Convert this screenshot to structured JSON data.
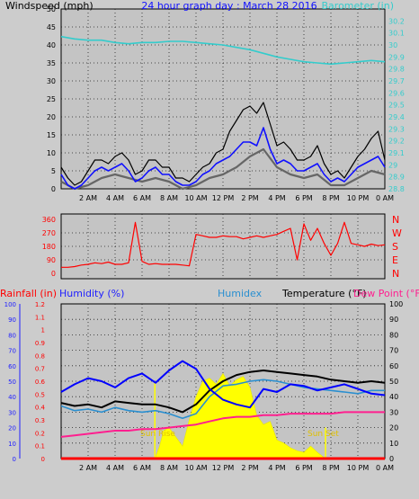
{
  "colors": {
    "background": "#cccccc",
    "plot_bg": "#c4c4c4",
    "wind_gust": "#000000",
    "wind_avg": "#1010ff",
    "wind_10min": "#666666",
    "baro": "#33cccc",
    "dir": "#ff0000",
    "temp": "#000000",
    "dew": "#ff1f8f",
    "humidity": "#0000ff",
    "humidex": "#2a8fd0",
    "solar": "#ffff00",
    "rain": "#ff0000",
    "sunlabel": "#e0c000"
  },
  "chart_data": [
    {
      "type": "line",
      "title": "24 hour graph day : March 28 2016",
      "ylabel": "Windspeed (mph)",
      "y2label": "Barometer (in)",
      "ylim": [
        0,
        50
      ],
      "y2lim": [
        28.8,
        30.3
      ],
      "yticks": [
        "0",
        "5",
        "10",
        "15",
        "20",
        "25",
        "30",
        "35",
        "40",
        "45",
        "50"
      ],
      "y2ticks": [
        "28.8",
        "28.9",
        "29",
        "29.1",
        "29.2",
        "29.3",
        "29.4",
        "29.5",
        "29.6",
        "29.7",
        "29.8",
        "29.9",
        "30",
        "30.1",
        "30.2"
      ],
      "xlim": [
        0,
        24
      ],
      "xticks": [
        "2 AM",
        "4 AM",
        "6 AM",
        "8 AM",
        "10 AM",
        "12 PM",
        "2 PM",
        "4 PM",
        "6 PM",
        "8 PM",
        "10 PM",
        "0 AM"
      ],
      "grid": true,
      "series": [
        {
          "key": "gust",
          "x": [
            0,
            0.5,
            1,
            1.5,
            2,
            2.5,
            3,
            3.5,
            4,
            4.5,
            5,
            5.5,
            6,
            6.5,
            7,
            7.5,
            8,
            8.5,
            9,
            9.5,
            10,
            10.5,
            11,
            11.5,
            12,
            12.5,
            13,
            13.5,
            14,
            14.5,
            15,
            15.5,
            16,
            16.5,
            17,
            17.5,
            18,
            18.5,
            19,
            19.5,
            20,
            20.5,
            21,
            21.5,
            22,
            22.5,
            23,
            23.5,
            24
          ],
          "y": [
            6,
            3,
            1,
            2,
            5,
            8,
            8,
            7,
            9,
            10,
            8,
            4,
            5,
            8,
            8,
            6,
            6,
            3,
            3,
            2,
            4,
            6,
            7,
            10,
            11,
            16,
            19,
            22,
            23,
            21,
            24,
            18,
            12,
            13,
            11,
            8,
            8,
            9,
            12,
            7,
            4,
            5,
            3,
            6,
            9,
            11,
            14,
            16,
            8
          ]
        },
        {
          "key": "avg",
          "x": [
            0,
            0.5,
            1,
            1.5,
            2,
            2.5,
            3,
            3.5,
            4,
            4.5,
            5,
            5.5,
            6,
            6.5,
            7,
            7.5,
            8,
            8.5,
            9,
            9.5,
            10,
            10.5,
            11,
            11.5,
            12,
            12.5,
            13,
            13.5,
            14,
            14.5,
            15,
            15.5,
            16,
            16.5,
            17,
            17.5,
            18,
            18.5,
            19,
            19.5,
            20,
            20.5,
            21,
            21.5,
            22,
            22.5,
            23,
            23.5,
            24
          ],
          "y": [
            4,
            1,
            0,
            1,
            3,
            5,
            6,
            5,
            6,
            7,
            5,
            2,
            3,
            5,
            6,
            4,
            4,
            2,
            1,
            1,
            2,
            4,
            5,
            7,
            8,
            9,
            11,
            13,
            13,
            12,
            17,
            11,
            7,
            8,
            7,
            5,
            5,
            6,
            7,
            4,
            2,
            3,
            2,
            4,
            6,
            7,
            8,
            9,
            6
          ]
        },
        {
          "key": "avg10",
          "x": [
            0,
            1,
            2,
            3,
            4,
            5,
            6,
            7,
            8,
            9,
            10,
            11,
            12,
            13,
            14,
            15,
            16,
            17,
            18,
            19,
            20,
            21,
            22,
            23,
            24
          ],
          "y": [
            2,
            0,
            1,
            3,
            4,
            3,
            2,
            3,
            2,
            0,
            1,
            3,
            4,
            6,
            9,
            11,
            6,
            4,
            3,
            4,
            1,
            1,
            3,
            5,
            4
          ]
        },
        {
          "key": "baro",
          "x": [
            0,
            1,
            2,
            3,
            4,
            5,
            6,
            7,
            8,
            9,
            10,
            11,
            12,
            13,
            14,
            15,
            16,
            17,
            18,
            19,
            20,
            21,
            22,
            23,
            24
          ],
          "y": [
            30.07,
            30.05,
            30.04,
            30.04,
            30.02,
            30.01,
            30.02,
            30.02,
            30.03,
            30.03,
            30.02,
            30.01,
            30.0,
            29.98,
            29.96,
            29.93,
            29.9,
            29.88,
            29.86,
            29.85,
            29.84,
            29.85,
            29.86,
            29.87,
            29.86
          ]
        }
      ]
    },
    {
      "type": "line",
      "title": "",
      "yticks": [
        "0",
        "90",
        "180",
        "270",
        "360"
      ],
      "y2ticks": [
        "N",
        "E",
        "S",
        "W",
        "N"
      ],
      "ylim": [
        0,
        360
      ],
      "grid": true,
      "series": [
        {
          "key": "dir",
          "x": [
            0,
            0.5,
            1,
            1.5,
            2,
            2.5,
            3,
            3.5,
            4,
            4.5,
            5,
            5.5,
            6,
            6.5,
            7,
            7.5,
            8,
            8.5,
            9,
            9.5,
            10,
            10.5,
            11,
            11.5,
            12,
            12.5,
            13,
            13.5,
            14,
            14.5,
            15,
            15.5,
            16,
            16.5,
            17,
            17.5,
            18,
            18.5,
            19,
            19.5,
            20,
            20.5,
            21,
            21.5,
            22,
            22.5,
            23,
            23.5,
            24
          ],
          "y": [
            40,
            40,
            45,
            55,
            60,
            70,
            65,
            75,
            60,
            60,
            70,
            340,
            80,
            60,
            65,
            60,
            60,
            60,
            55,
            50,
            260,
            250,
            240,
            240,
            250,
            245,
            245,
            230,
            240,
            250,
            240,
            250,
            260,
            280,
            300,
            90,
            330,
            220,
            300,
            200,
            120,
            200,
            340,
            200,
            190,
            180,
            195,
            185,
            190
          ]
        }
      ]
    },
    {
      "type": "line",
      "title": "",
      "ylabel": "Rainfall (in)",
      "ylabel2": "Humidity (%)",
      "label_humidex": "Humidex",
      "label_temp": "Temperature (°F)",
      "label_dew": "Dew Point (°F)",
      "ylim": [
        0,
        100
      ],
      "rain_ticks": [
        "0",
        "0.1",
        "0.2",
        "0.3",
        "0.4",
        "0.5",
        "0.6",
        "0.7",
        "0.8",
        "0.9",
        "1",
        "1.1",
        "1.2"
      ],
      "hum_ticks": [
        "0",
        "10",
        "20",
        "30",
        "40",
        "50",
        "60",
        "70",
        "80",
        "90",
        "100"
      ],
      "temp_ticks": [
        "0",
        "10",
        "20",
        "30",
        "40",
        "50",
        "60",
        "70",
        "80",
        "90",
        "100"
      ],
      "sun_rise_label": "Sun Rise",
      "sun_set_label": "Sun Set",
      "grid": true,
      "series": [
        {
          "key": "humidity",
          "x": [
            0,
            1,
            2,
            3,
            4,
            5,
            6,
            7,
            8,
            9,
            10,
            11,
            12,
            13,
            14,
            15,
            16,
            17,
            18,
            19,
            20,
            21,
            22,
            23,
            24
          ],
          "y": [
            43,
            48,
            52,
            50,
            46,
            52,
            55,
            49,
            57,
            63,
            58,
            45,
            38,
            35,
            33,
            45,
            43,
            48,
            47,
            44,
            46,
            48,
            45,
            42,
            41
          ]
        },
        {
          "key": "temp",
          "x": [
            0,
            1,
            2,
            3,
            4,
            5,
            6,
            7,
            8,
            9,
            10,
            11,
            12,
            13,
            14,
            15,
            16,
            17,
            18,
            19,
            20,
            21,
            22,
            23,
            24
          ],
          "y": [
            36,
            34,
            35,
            33,
            37,
            36,
            35,
            35,
            33,
            30,
            35,
            44,
            50,
            54,
            56,
            57,
            56,
            55,
            54,
            53,
            51,
            50,
            49,
            50,
            49
          ]
        },
        {
          "key": "humidex",
          "x": [
            0,
            1,
            2,
            3,
            4,
            5,
            6,
            7,
            8,
            9,
            10,
            11,
            12,
            13,
            14,
            15,
            16,
            17,
            18,
            19,
            20,
            21,
            22,
            23,
            24
          ],
          "y": [
            34,
            31,
            32,
            30,
            33,
            31,
            30,
            31,
            29,
            26,
            29,
            40,
            47,
            48,
            50,
            51,
            50,
            48,
            46,
            45,
            44,
            43,
            42,
            44,
            44
          ]
        },
        {
          "key": "dew",
          "x": [
            0,
            1,
            2,
            3,
            4,
            5,
            6,
            7,
            8,
            9,
            10,
            11,
            12,
            13,
            14,
            15,
            16,
            17,
            18,
            19,
            20,
            21,
            22,
            23,
            24
          ],
          "y": [
            14,
            15,
            16,
            17,
            18,
            18,
            19,
            19,
            20,
            21,
            22,
            24,
            26,
            27,
            27,
            28,
            28,
            29,
            29,
            29,
            29,
            30,
            30,
            30,
            30
          ]
        },
        {
          "key": "solar",
          "x": [
            6.95,
            7.3,
            7.6,
            8,
            8.5,
            9,
            9.5,
            10,
            10.5,
            11,
            11.5,
            12,
            12.5,
            13,
            13.5,
            14,
            14.5,
            15,
            15.5,
            16,
            16.5,
            17,
            17.5,
            18,
            18.5,
            19,
            19.3,
            19.6
          ],
          "y": [
            0,
            8,
            18,
            20,
            14,
            8,
            25,
            40,
            50,
            52,
            48,
            55,
            47,
            51,
            53,
            46,
            28,
            22,
            24,
            12,
            10,
            7,
            5,
            4,
            8,
            4,
            2,
            0
          ]
        },
        {
          "key": "rain",
          "x": [
            0,
            24
          ],
          "y": [
            0,
            0
          ]
        }
      ]
    }
  ]
}
